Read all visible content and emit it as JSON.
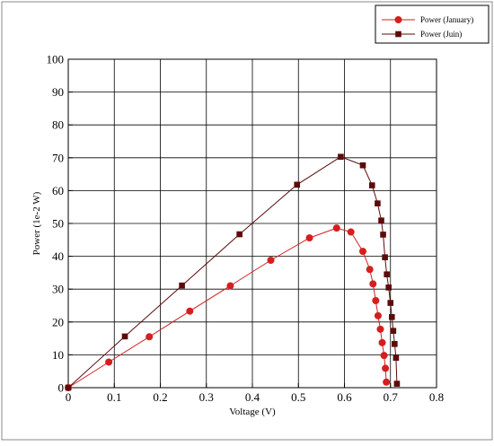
{
  "chart_data": {
    "type": "line",
    "xlabel": "Voltage (V)",
    "ylabel": "Power (1e-2 W)",
    "xlim": [
      0,
      0.8
    ],
    "ylim": [
      0,
      100
    ],
    "x_ticks": [
      "0",
      "0.1",
      "0.2",
      "0.3",
      "0.4",
      "0.5",
      "0.6",
      "0.7",
      "0.8"
    ],
    "y_ticks": [
      "0",
      "10",
      "20",
      "30",
      "40",
      "50",
      "60",
      "70",
      "80",
      "90",
      "100"
    ],
    "grid": true,
    "legend_position": "top-right",
    "series": [
      {
        "name": "Power (January)",
        "color": "#d41f1f",
        "marker": "circle",
        "x": [
          0,
          0.088,
          0.176,
          0.264,
          0.352,
          0.44,
          0.524,
          0.583,
          0.614,
          0.64,
          0.655,
          0.662,
          0.668,
          0.673,
          0.678,
          0.682,
          0.686,
          0.689,
          0.691
        ],
        "y": [
          0,
          7.8,
          15.5,
          23.3,
          31,
          38.8,
          45.6,
          48.6,
          47.4,
          41.5,
          36,
          31.6,
          26.5,
          21.9,
          17.8,
          13.7,
          9.8,
          5.9,
          1.7
        ]
      },
      {
        "name": "Power (Juin)",
        "color": "#5c0a0a",
        "marker": "square",
        "x": [
          0,
          0.123,
          0.247,
          0.372,
          0.497,
          0.592,
          0.64,
          0.66,
          0.672,
          0.68,
          0.684,
          0.688,
          0.692,
          0.696,
          0.7,
          0.703,
          0.706,
          0.709,
          0.712,
          0.714
        ],
        "y": [
          0,
          15.6,
          31.1,
          46.7,
          61.8,
          70.3,
          67.7,
          61.6,
          56.1,
          50.9,
          46.6,
          39.7,
          34.5,
          30.5,
          25.8,
          21.5,
          17.3,
          13.3,
          9.1,
          1.2
        ]
      }
    ]
  }
}
